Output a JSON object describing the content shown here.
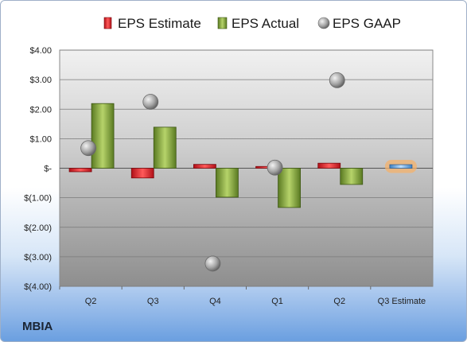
{
  "company": "MBIA",
  "chart_data": {
    "type": "bar",
    "categories": [
      "Q2",
      "Q3",
      "Q4",
      "Q1",
      "Q2",
      "Q3 Estimate"
    ],
    "series": [
      {
        "name": "EPS Estimate",
        "values": [
          -0.12,
          -0.33,
          0.13,
          0.06,
          0.17,
          0.12
        ]
      },
      {
        "name": "EPS Actual",
        "values": [
          2.19,
          1.39,
          -0.98,
          -1.33,
          -0.55,
          null
        ]
      },
      {
        "name": "EPS GAAP",
        "values": [
          0.68,
          2.25,
          -3.23,
          0.02,
          2.98,
          null
        ]
      }
    ],
    "yticks": [
      "$4.00",
      "$3.00",
      "$2.00",
      "$1.00",
      "$-",
      "$(1.00)",
      "$(2.00)",
      "$(3.00)",
      "$(4.00)"
    ],
    "ylim": [
      -4,
      4
    ],
    "legend_position": "top",
    "grid": true,
    "colors": {
      "estimate": "#e0202a",
      "actual": "#8cb041",
      "gaap": "#a9a9a9",
      "projected_estimate": "#6fa8dc",
      "projected_glow": "#f4b26b"
    }
  }
}
